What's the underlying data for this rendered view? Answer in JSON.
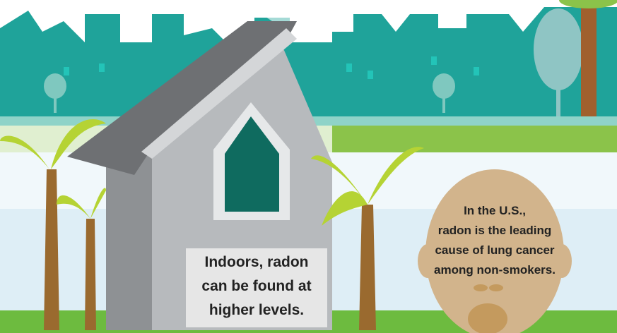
{
  "house": {
    "caption": [
      "Indoors, radon",
      "can be found at",
      "higher levels."
    ]
  },
  "head": {
    "caption": [
      "In the U.S.,",
      "radon is the leading",
      "cause of lung cancer",
      "among non-smokers."
    ]
  }
}
